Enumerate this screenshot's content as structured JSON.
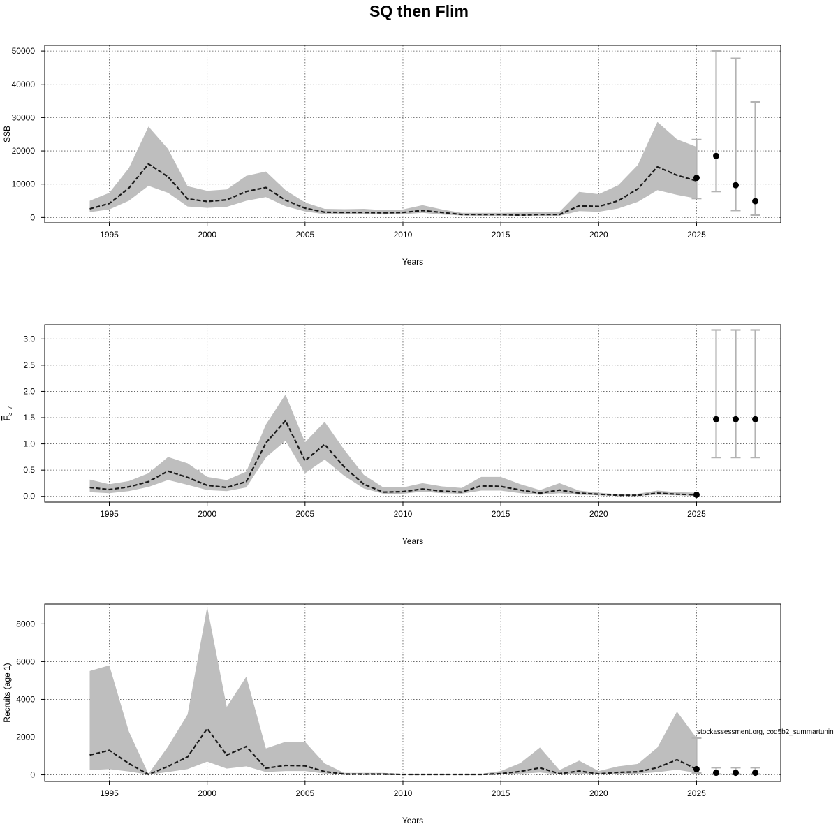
{
  "title": "SQ then Flim",
  "chart_data": [
    {
      "type": "line",
      "name": "ssb",
      "ylabel": "SSB",
      "ylabel_parts": [
        "",
        ""
      ],
      "xlabel": "Years",
      "xlim": [
        1991.7,
        2029.3
      ],
      "ylim": [
        -1600,
        51700
      ],
      "xticks": [
        1995,
        2000,
        2005,
        2010,
        2015,
        2020,
        2025
      ],
      "yticks": [
        0,
        10000,
        20000,
        30000,
        40000,
        50000
      ],
      "x": [
        1994,
        1995,
        1996,
        1997,
        1998,
        1999,
        2000,
        2001,
        2002,
        2003,
        2004,
        2005,
        2006,
        2007,
        2008,
        2009,
        2010,
        2011,
        2012,
        2013,
        2014,
        2015,
        2016,
        2017,
        2018,
        2019,
        2020,
        2021,
        2022,
        2023,
        2024,
        2025
      ],
      "median": [
        2600,
        4200,
        8800,
        16100,
        12200,
        5600,
        4800,
        5300,
        7800,
        9000,
        5200,
        2800,
        1600,
        1500,
        1500,
        1400,
        1500,
        2100,
        1500,
        900,
        900,
        900,
        700,
        900,
        900,
        3500,
        3300,
        5000,
        8600,
        15200,
        12700,
        11000
      ],
      "lower": [
        1600,
        2400,
        5000,
        9500,
        7400,
        3300,
        2900,
        3200,
        5000,
        6100,
        3400,
        1800,
        1000,
        1000,
        1000,
        900,
        1000,
        1400,
        900,
        600,
        500,
        500,
        500,
        500,
        500,
        1900,
        1700,
        2700,
        4700,
        8200,
        6800,
        5700
      ],
      "upper": [
        5000,
        7400,
        14800,
        27300,
        20600,
        9400,
        8000,
        8400,
        12500,
        13800,
        8200,
        4500,
        2600,
        2500,
        2600,
        2200,
        2400,
        3700,
        2400,
        1400,
        1400,
        1400,
        1500,
        1600,
        1700,
        7700,
        7000,
        9700,
        15800,
        28700,
        23500,
        21200
      ],
      "projection": {
        "x": [
          2025,
          2026,
          2027,
          2028
        ],
        "point": [
          11900,
          18500,
          9700,
          4900
        ],
        "lower": [
          5700,
          7800,
          2100,
          700
        ],
        "upper": [
          23400,
          50000,
          47800,
          34700
        ]
      },
      "annotation": ""
    },
    {
      "type": "line",
      "name": "fbar",
      "ylabel": "",
      "ylabel_parts": [
        "F",
        "3−7"
      ],
      "xlabel": "Years",
      "xlim": [
        1991.7,
        2029.3
      ],
      "ylim": [
        -0.11,
        3.27
      ],
      "xticks": [
        1995,
        2000,
        2005,
        2010,
        2015,
        2020,
        2025
      ],
      "yticks": [
        0.0,
        0.5,
        1.0,
        1.5,
        2.0,
        2.5,
        3.0
      ],
      "ytick_labels": [
        "0.0",
        "0.5",
        "1.0",
        "1.5",
        "2.0",
        "2.5",
        "3.0"
      ],
      "x": [
        1994,
        1995,
        1996,
        1997,
        1998,
        1999,
        2000,
        2001,
        2002,
        2003,
        2004,
        2005,
        2006,
        2007,
        2008,
        2009,
        2010,
        2011,
        2012,
        2013,
        2014,
        2015,
        2016,
        2017,
        2018,
        2019,
        2020,
        2021,
        2022,
        2023,
        2024,
        2025
      ],
      "median": [
        0.17,
        0.13,
        0.18,
        0.28,
        0.48,
        0.36,
        0.21,
        0.17,
        0.28,
        1.02,
        1.44,
        0.68,
        0.99,
        0.56,
        0.23,
        0.08,
        0.09,
        0.14,
        0.1,
        0.08,
        0.2,
        0.19,
        0.12,
        0.06,
        0.12,
        0.06,
        0.04,
        0.02,
        0.02,
        0.06,
        0.04,
        0.03
      ],
      "lower": [
        0.08,
        0.06,
        0.1,
        0.18,
        0.31,
        0.22,
        0.12,
        0.1,
        0.17,
        0.74,
        1.06,
        0.44,
        0.7,
        0.39,
        0.15,
        0.05,
        0.05,
        0.09,
        0.06,
        0.05,
        0.11,
        0.11,
        0.06,
        0.03,
        0.06,
        0.03,
        0.02,
        0.01,
        0.01,
        0.03,
        0.02,
        0.01
      ],
      "upper": [
        0.32,
        0.23,
        0.29,
        0.44,
        0.75,
        0.63,
        0.37,
        0.31,
        0.47,
        1.37,
        1.94,
        1.03,
        1.42,
        0.89,
        0.41,
        0.17,
        0.17,
        0.25,
        0.19,
        0.16,
        0.37,
        0.37,
        0.23,
        0.12,
        0.25,
        0.11,
        0.07,
        0.04,
        0.05,
        0.11,
        0.08,
        0.07
      ],
      "projection": {
        "x": [
          2025,
          2026,
          2027,
          2028
        ],
        "point": [
          0.03,
          1.47,
          1.47,
          1.47
        ],
        "lower": [
          0.03,
          0.74,
          0.74,
          0.74
        ],
        "upper": [
          0.03,
          3.17,
          3.17,
          3.17
        ]
      },
      "annotation": ""
    },
    {
      "type": "line",
      "name": "recruits",
      "ylabel": "Recruits (age 1)",
      "ylabel_parts": [
        "",
        ""
      ],
      "xlabel": "Years",
      "xlim": [
        1991.7,
        2029.3
      ],
      "ylim": [
        -350,
        9050
      ],
      "xticks": [
        1995,
        2000,
        2005,
        2010,
        2015,
        2020,
        2025
      ],
      "yticks": [
        0,
        2000,
        4000,
        6000,
        8000
      ],
      "x": [
        1994,
        1995,
        1996,
        1997,
        1998,
        1999,
        2000,
        2001,
        2002,
        2003,
        2004,
        2005,
        2006,
        2007,
        2008,
        2009,
        2010,
        2011,
        2012,
        2013,
        2014,
        2015,
        2016,
        2017,
        2018,
        2019,
        2020,
        2021,
        2022,
        2023,
        2024,
        2025
      ],
      "median": [
        1050,
        1300,
        600,
        20,
        450,
        950,
        2450,
        1050,
        1500,
        350,
        500,
        480,
        170,
        40,
        40,
        40,
        20,
        20,
        20,
        20,
        20,
        60,
        180,
        370,
        60,
        200,
        50,
        130,
        160,
        380,
        800,
        300
      ],
      "lower": [
        250,
        300,
        180,
        10,
        150,
        300,
        700,
        330,
        450,
        150,
        200,
        200,
        70,
        15,
        15,
        15,
        10,
        10,
        10,
        10,
        10,
        25,
        60,
        120,
        20,
        70,
        20,
        50,
        60,
        140,
        270,
        100
      ],
      "upper": [
        5500,
        5800,
        2300,
        50,
        1500,
        3200,
        8900,
        3600,
        5200,
        1400,
        1750,
        1750,
        600,
        100,
        100,
        100,
        50,
        50,
        50,
        50,
        50,
        200,
        620,
        1450,
        250,
        750,
        200,
        450,
        580,
        1450,
        3350,
        1950
      ],
      "projection": {
        "x": [
          2025,
          2026,
          2027,
          2028
        ],
        "point": [
          300,
          110,
          110,
          110
        ],
        "lower": [
          100,
          40,
          40,
          40
        ],
        "upper": [
          1950,
          380,
          380,
          380
        ]
      },
      "annotation": "stockassessment.org, cod5b2_summartunin"
    }
  ]
}
